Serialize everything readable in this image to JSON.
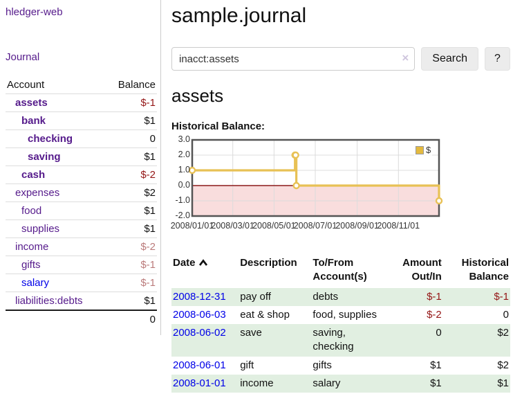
{
  "app": {
    "title": "hledger-web",
    "nav": {
      "journal_label": "Journal"
    }
  },
  "sidebar": {
    "accounts_table": {
      "col_account": "Account",
      "col_balance": "Balance",
      "rows": [
        {
          "name": "assets",
          "indent": 0,
          "bold": true,
          "link_color": "purple",
          "balance": "$-1",
          "balance_style": "neg"
        },
        {
          "name": "bank",
          "indent": 1,
          "bold": true,
          "link_color": "purple",
          "balance": "$1",
          "balance_style": "normal"
        },
        {
          "name": "checking",
          "indent": 2,
          "bold": true,
          "link_color": "purple",
          "balance": "0",
          "balance_style": "normal"
        },
        {
          "name": "saving",
          "indent": 2,
          "bold": true,
          "link_color": "purple",
          "balance": "$1",
          "balance_style": "normal"
        },
        {
          "name": "cash",
          "indent": 1,
          "bold": true,
          "link_color": "purple",
          "balance": "$-2",
          "balance_style": "neg"
        },
        {
          "name": "expenses",
          "indent": 0,
          "bold": false,
          "link_color": "purple",
          "balance": "$2",
          "balance_style": "normal"
        },
        {
          "name": "food",
          "indent": 1,
          "bold": false,
          "link_color": "purple",
          "balance": "$1",
          "balance_style": "normal"
        },
        {
          "name": "supplies",
          "indent": 1,
          "bold": false,
          "link_color": "purple",
          "balance": "$1",
          "balance_style": "normal"
        },
        {
          "name": "income",
          "indent": 0,
          "bold": false,
          "link_color": "purple",
          "balance": "$-2",
          "balance_style": "neg-muted"
        },
        {
          "name": "gifts",
          "indent": 1,
          "bold": false,
          "link_color": "purple",
          "balance": "$-1",
          "balance_style": "neg-muted"
        },
        {
          "name": "salary",
          "indent": 1,
          "bold": false,
          "link_color": "blue",
          "balance": "$-1",
          "balance_style": "neg-muted"
        },
        {
          "name": "liabilities:debts",
          "indent": 0,
          "bold": false,
          "link_color": "purple",
          "balance": "$1",
          "balance_style": "normal"
        }
      ],
      "total": "0"
    }
  },
  "header": {
    "title": "sample.journal"
  },
  "search": {
    "value": "inacct:assets",
    "clear_icon": "×",
    "button_label": "Search",
    "help_label": "?"
  },
  "account_page": {
    "heading": "assets",
    "chart_label": "Historical Balance:"
  },
  "chart_data": {
    "type": "line",
    "step": true,
    "title": "Historical Balance",
    "series": [
      {
        "name": "$",
        "color": "#e8c155",
        "swatch_color": "#e4ba3f",
        "points": [
          [
            "2008-01-01",
            1
          ],
          [
            "2008-06-01",
            2
          ],
          [
            "2008-06-02",
            2
          ],
          [
            "2008-06-03",
            0
          ],
          [
            "2008-12-31",
            -1
          ]
        ]
      }
    ],
    "xlim": [
      "2008-01-01",
      "2008-12-31"
    ],
    "ylim": [
      -2,
      3
    ],
    "y_ticks": [
      3.0,
      2.0,
      1.0,
      0.0,
      -1.0,
      -2.0
    ],
    "y_tick_labels": [
      "3.0",
      "2.0",
      "1.0",
      "0.0",
      "-1.0",
      "-2.0"
    ],
    "x_tick_labels": [
      "2008/01/01",
      "2008/03/01",
      "2008/05/01",
      "2008/07/01",
      "2008/09/01",
      "2008/11/01"
    ],
    "legend_position": "top-right",
    "grid": true,
    "negative_region_color": "#f9dddd",
    "zero_line_color": "#8b1a1a",
    "border_color": "#545454",
    "grid_color": "#dcdcdc"
  },
  "register": {
    "columns": {
      "date": "Date",
      "description": "Description",
      "accounts": "To/From Account(s)",
      "amount": "Amount Out/In",
      "balance": "Historical Balance"
    },
    "sort_icon": "chevron-up",
    "rows": [
      {
        "date": "2008-12-31",
        "description": "pay off",
        "accounts": "debts",
        "amount": "$-1",
        "amount_style": "neg",
        "balance": "$-1",
        "balance_style": "neg"
      },
      {
        "date": "2008-06-03",
        "description": "eat & shop",
        "accounts": "food, supplies",
        "amount": "$-2",
        "amount_style": "neg",
        "balance": "0",
        "balance_style": "normal"
      },
      {
        "date": "2008-06-02",
        "description": "save",
        "accounts": "saving, checking",
        "amount": "0",
        "amount_style": "normal",
        "balance": "$2",
        "balance_style": "normal"
      },
      {
        "date": "2008-06-01",
        "description": "gift",
        "accounts": "gifts",
        "amount": "$1",
        "amount_style": "normal",
        "balance": "$2",
        "balance_style": "normal"
      },
      {
        "date": "2008-01-01",
        "description": "income",
        "accounts": "salary",
        "amount": "$1",
        "amount_style": "normal",
        "balance": "$1",
        "balance_style": "normal"
      }
    ]
  },
  "colors": {
    "link_purple": "#551a8b",
    "link_blue": "#0000e8",
    "negative": "#941616",
    "negative_muted": "#bb7b7b",
    "row_stripe_green": "#e1efe1",
    "chart_gold": "#e8c155"
  }
}
